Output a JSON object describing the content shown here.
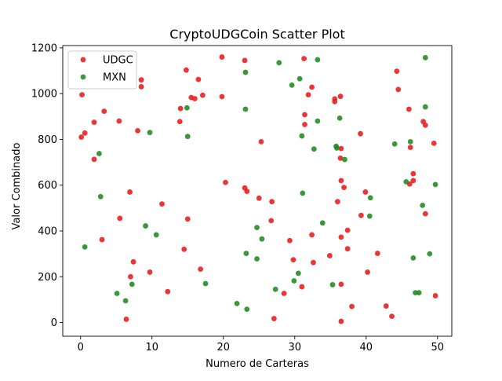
{
  "chart_data": {
    "type": "scatter",
    "title": "CryptoUDGCoin Scatter Plot",
    "xlabel": "Numero de Carteras",
    "ylabel": "Valor Combinado",
    "xlim": [
      -2.5,
      52
    ],
    "ylim": [
      -60,
      1210
    ],
    "xticks": [
      0,
      10,
      20,
      30,
      40,
      50
    ],
    "yticks": [
      0,
      200,
      400,
      600,
      800,
      1000,
      1200
    ],
    "legend_position": "upper left",
    "series": [
      {
        "name": "UDGC",
        "color": "#e8191a",
        "points": [
          [
            0.1,
            810
          ],
          [
            0.2,
            995
          ],
          [
            0.6,
            828
          ],
          [
            1.9,
            875
          ],
          [
            1.9,
            713
          ],
          [
            3.0,
            362
          ],
          [
            3.3,
            923
          ],
          [
            5.4,
            880
          ],
          [
            5.5,
            455
          ],
          [
            6.4,
            14
          ],
          [
            6.9,
            570
          ],
          [
            7.0,
            200
          ],
          [
            7.4,
            265
          ],
          [
            8.0,
            838
          ],
          [
            8.5,
            1060
          ],
          [
            8.5,
            1030
          ],
          [
            9.7,
            220
          ],
          [
            11.4,
            518
          ],
          [
            12.2,
            135
          ],
          [
            13.9,
            878
          ],
          [
            14.0,
            935
          ],
          [
            14.5,
            320
          ],
          [
            14.8,
            1103
          ],
          [
            15.0,
            452
          ],
          [
            15.5,
            983
          ],
          [
            16.0,
            978
          ],
          [
            16.5,
            1062
          ],
          [
            16.8,
            233
          ],
          [
            17.1,
            993
          ],
          [
            19.8,
            1160
          ],
          [
            19.8,
            987
          ],
          [
            20.3,
            612
          ],
          [
            23.0,
            1145
          ],
          [
            23.0,
            588
          ],
          [
            23.3,
            573
          ],
          [
            25.0,
            543
          ],
          [
            25.3,
            790
          ],
          [
            26.7,
            445
          ],
          [
            26.8,
            528
          ],
          [
            27.1,
            17
          ],
          [
            28.5,
            127
          ],
          [
            29.3,
            358
          ],
          [
            29.8,
            274
          ],
          [
            31.0,
            156
          ],
          [
            31.3,
            1153
          ],
          [
            31.4,
            908
          ],
          [
            31.4,
            865
          ],
          [
            31.9,
            995
          ],
          [
            32.4,
            1028
          ],
          [
            32.4,
            383
          ],
          [
            32.6,
            262
          ],
          [
            34.9,
            292
          ],
          [
            35.6,
            977
          ],
          [
            35.6,
            965
          ],
          [
            36.0,
            528
          ],
          [
            36.4,
            988
          ],
          [
            36.4,
            718
          ],
          [
            36.5,
            760
          ],
          [
            36.5,
            620
          ],
          [
            36.5,
            373
          ],
          [
            36.5,
            167
          ],
          [
            36.5,
            5
          ],
          [
            36.9,
            590
          ],
          [
            37.4,
            403
          ],
          [
            37.4,
            322
          ],
          [
            38.0,
            70
          ],
          [
            39.2,
            825
          ],
          [
            39.3,
            468
          ],
          [
            39.9,
            570
          ],
          [
            40.2,
            220
          ],
          [
            41.6,
            302
          ],
          [
            42.8,
            72
          ],
          [
            43.6,
            27
          ],
          [
            44.3,
            1098
          ],
          [
            44.5,
            1018
          ],
          [
            46.0,
            932
          ],
          [
            46.1,
            605
          ],
          [
            46.2,
            765
          ],
          [
            46.6,
            650
          ],
          [
            46.6,
            620
          ],
          [
            48.0,
            878
          ],
          [
            48.3,
            862
          ],
          [
            48.3,
            475
          ],
          [
            49.5,
            783
          ],
          [
            49.7,
            117
          ]
        ]
      },
      {
        "name": "MXN",
        "color": "#1f8a1f",
        "points": [
          [
            0.6,
            330
          ],
          [
            2.6,
            738
          ],
          [
            2.8,
            550
          ],
          [
            5.1,
            127
          ],
          [
            6.3,
            95
          ],
          [
            7.2,
            167
          ],
          [
            9.1,
            422
          ],
          [
            9.7,
            830
          ],
          [
            10.6,
            383
          ],
          [
            14.9,
            938
          ],
          [
            15.0,
            813
          ],
          [
            17.5,
            170
          ],
          [
            21.9,
            83
          ],
          [
            23.1,
            1093
          ],
          [
            23.1,
            932
          ],
          [
            23.2,
            302
          ],
          [
            23.3,
            58
          ],
          [
            24.7,
            415
          ],
          [
            24.7,
            278
          ],
          [
            25.4,
            365
          ],
          [
            27.3,
            145
          ],
          [
            27.8,
            1135
          ],
          [
            29.6,
            1037
          ],
          [
            29.9,
            182
          ],
          [
            30.5,
            215
          ],
          [
            30.7,
            1065
          ],
          [
            31.0,
            815
          ],
          [
            31.1,
            565
          ],
          [
            32.7,
            758
          ],
          [
            33.2,
            880
          ],
          [
            33.2,
            1148
          ],
          [
            33.9,
            435
          ],
          [
            35.3,
            165
          ],
          [
            35.8,
            770
          ],
          [
            35.9,
            762
          ],
          [
            36.3,
            893
          ],
          [
            37.0,
            712
          ],
          [
            40.5,
            465
          ],
          [
            40.6,
            545
          ],
          [
            44.0,
            780
          ],
          [
            45.6,
            615
          ],
          [
            46.2,
            790
          ],
          [
            46.6,
            282
          ],
          [
            46.9,
            130
          ],
          [
            47.4,
            130
          ],
          [
            47.9,
            512
          ],
          [
            48.3,
            1157
          ],
          [
            48.3,
            942
          ],
          [
            48.9,
            300
          ],
          [
            49.7,
            603
          ]
        ]
      }
    ]
  }
}
